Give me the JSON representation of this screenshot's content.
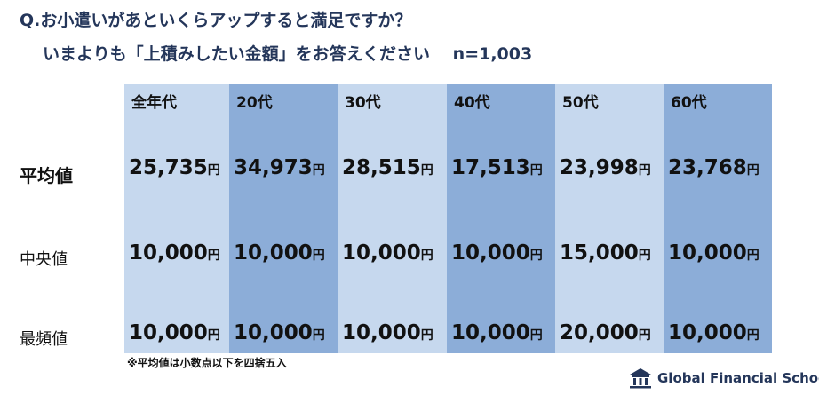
{
  "header": {
    "title": "Q.お小遣いがあといくらアップすると満足ですか？",
    "subtitle": "いまよりも「上積みしたい金額」をお答えください　 n=1,003"
  },
  "table": {
    "columns": [
      "全年代",
      "20代",
      "30代",
      "40代",
      "50代",
      "60代"
    ],
    "rows": [
      {
        "label": "平均値",
        "cells": [
          {
            "amount": "25,735",
            "unit": "円"
          },
          {
            "amount": "34,973",
            "unit": "円"
          },
          {
            "amount": "28,515",
            "unit": "円"
          },
          {
            "amount": "17,513",
            "unit": "円"
          },
          {
            "amount": "23,998",
            "unit": "円"
          },
          {
            "amount": "23,768",
            "unit": "円"
          }
        ]
      },
      {
        "label": "中央値",
        "cells": [
          {
            "amount": "10,000",
            "unit": "円"
          },
          {
            "amount": "10,000",
            "unit": "円"
          },
          {
            "amount": "10,000",
            "unit": "円"
          },
          {
            "amount": "10,000",
            "unit": "円"
          },
          {
            "amount": "15,000",
            "unit": "円"
          },
          {
            "amount": "10,000",
            "unit": "円"
          }
        ]
      },
      {
        "label": "最頻値",
        "cells": [
          {
            "amount": "10,000",
            "unit": "円"
          },
          {
            "amount": "10,000",
            "unit": "円"
          },
          {
            "amount": "10,000",
            "unit": "円"
          },
          {
            "amount": "10,000",
            "unit": "円"
          },
          {
            "amount": "20,000",
            "unit": "円"
          },
          {
            "amount": "10,000",
            "unit": "円"
          }
        ]
      }
    ]
  },
  "footnote": "※平均値は小数点以下を四捨五入",
  "logo": "Global Financial School"
}
